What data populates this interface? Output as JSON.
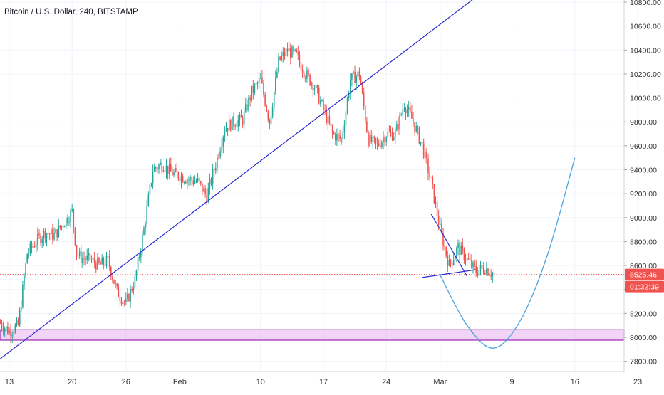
{
  "chart_data": {
    "type": "candlestick",
    "title": "Bitcoin / U.S. Dollar, 240, BITSTAMP",
    "colors": {
      "up": "#26a69a",
      "down": "#ef5350",
      "trendline": "#2a2ad4",
      "projection": "#4aa3e0",
      "support_fill": "#e9b7f2",
      "support_border": "#9c27b0",
      "price_line": "#ef5350",
      "grid": "#f0f3fa",
      "axis_text": "#333333"
    },
    "y_axis": {
      "min": 7700,
      "max": 10900,
      "ticks": [
        "7800.00",
        "8000.00",
        "8200.00",
        "8400.00",
        "8600.00",
        "8800.00",
        "9000.00",
        "9200.00",
        "9400.00",
        "9600.00",
        "9800.00",
        "10000.00",
        "10200.00",
        "10400.00",
        "10600.00",
        "10800.00"
      ]
    },
    "x_axis": {
      "start": "2020-01-12",
      "end": "2020-03-23",
      "ticks": [
        {
          "date": "2020-01-13",
          "label": "13"
        },
        {
          "date": "2020-01-20",
          "label": "20"
        },
        {
          "date": "2020-01-26",
          "label": "26"
        },
        {
          "date": "2020-02-01",
          "label": "Feb"
        },
        {
          "date": "2020-02-10",
          "label": "10"
        },
        {
          "date": "2020-02-17",
          "label": "17"
        },
        {
          "date": "2020-02-24",
          "label": "24"
        },
        {
          "date": "2020-03-01",
          "label": "Mar"
        },
        {
          "date": "2020-03-09",
          "label": "9"
        },
        {
          "date": "2020-03-16",
          "label": "16"
        },
        {
          "date": "2020-03-23",
          "label": "23"
        }
      ]
    },
    "price_path": [
      {
        "x": "2020-01-12",
        "y": 8120
      },
      {
        "x": "2020-01-13",
        "y": 8050
      },
      {
        "x": "2020-01-14",
        "y": 8100
      },
      {
        "x": "2020-01-15",
        "y": 8700
      },
      {
        "x": "2020-01-16",
        "y": 8800
      },
      {
        "x": "2020-01-17",
        "y": 8880
      },
      {
        "x": "2020-01-18",
        "y": 8850
      },
      {
        "x": "2020-01-19",
        "y": 8950
      },
      {
        "x": "2020-01-20",
        "y": 9050
      },
      {
        "x": "2020-01-20.5",
        "y": 8700
      },
      {
        "x": "2020-01-21",
        "y": 8660
      },
      {
        "x": "2020-01-22",
        "y": 8650
      },
      {
        "x": "2020-01-23",
        "y": 8600
      },
      {
        "x": "2020-01-24",
        "y": 8640
      },
      {
        "x": "2020-01-25",
        "y": 8380
      },
      {
        "x": "2020-01-26",
        "y": 8280
      },
      {
        "x": "2020-01-27",
        "y": 8480
      },
      {
        "x": "2020-01-28",
        "y": 8900
      },
      {
        "x": "2020-01-29",
        "y": 9400
      },
      {
        "x": "2020-01-30",
        "y": 9450
      },
      {
        "x": "2020-01-31",
        "y": 9380
      },
      {
        "x": "2020-02-01",
        "y": 9350
      },
      {
        "x": "2020-02-02",
        "y": 9320
      },
      {
        "x": "2020-02-03",
        "y": 9300
      },
      {
        "x": "2020-02-04",
        "y": 9180
      },
      {
        "x": "2020-02-05",
        "y": 9450
      },
      {
        "x": "2020-02-06",
        "y": 9750
      },
      {
        "x": "2020-02-07",
        "y": 9800
      },
      {
        "x": "2020-02-08",
        "y": 9820
      },
      {
        "x": "2020-02-09",
        "y": 10050
      },
      {
        "x": "2020-02-10",
        "y": 10150
      },
      {
        "x": "2020-02-11",
        "y": 9800
      },
      {
        "x": "2020-02-12",
        "y": 10300
      },
      {
        "x": "2020-02-13",
        "y": 10400
      },
      {
        "x": "2020-02-14",
        "y": 10350
      },
      {
        "x": "2020-02-15",
        "y": 10200
      },
      {
        "x": "2020-02-16",
        "y": 10100
      },
      {
        "x": "2020-02-17",
        "y": 9900
      },
      {
        "x": "2020-02-18",
        "y": 9700
      },
      {
        "x": "2020-02-19",
        "y": 9650
      },
      {
        "x": "2020-02-20",
        "y": 10150
      },
      {
        "x": "2020-02-21",
        "y": 10200
      },
      {
        "x": "2020-02-22",
        "y": 9650
      },
      {
        "x": "2020-02-23",
        "y": 9600
      },
      {
        "x": "2020-02-24",
        "y": 9700
      },
      {
        "x": "2020-02-25",
        "y": 9700
      },
      {
        "x": "2020-02-26",
        "y": 9950
      },
      {
        "x": "2020-02-27",
        "y": 9800
      },
      {
        "x": "2020-02-28",
        "y": 9600
      },
      {
        "x": "2020-02-29",
        "y": 9300
      },
      {
        "x": "2020-03-01",
        "y": 8900
      },
      {
        "x": "2020-03-02",
        "y": 8600
      },
      {
        "x": "2020-03-03",
        "y": 8750
      },
      {
        "x": "2020-03-04",
        "y": 8650
      },
      {
        "x": "2020-03-05",
        "y": 8550
      },
      {
        "x": "2020-03-06",
        "y": 8580
      },
      {
        "x": "2020-03-07",
        "y": 8525
      }
    ],
    "last_price": {
      "value": 8525.46,
      "label": "8525.46"
    },
    "countdown": {
      "label": "01:32:39"
    },
    "drawings": {
      "support_zone": {
        "from": 8000,
        "to": 8040
      },
      "rising_trendline": [
        {
          "x": "2020-01-09",
          "y": 7650
        },
        {
          "x": "2020-03-06",
          "y": 10900
        }
      ],
      "descending_line": [
        {
          "x": "2020-02-29",
          "y": 9030
        },
        {
          "x": "2020-03-04",
          "y": 8510
        }
      ],
      "flat_line": [
        {
          "x": "2020-02-28",
          "y": 8500
        },
        {
          "x": "2020-03-05",
          "y": 8565
        }
      ],
      "projection_curve": [
        {
          "x": "2020-03-01",
          "y": 8520
        },
        {
          "x": "2020-03-04",
          "y": 8100
        },
        {
          "x": "2020-03-07",
          "y": 7910
        },
        {
          "x": "2020-03-10",
          "y": 8150
        },
        {
          "x": "2020-03-13",
          "y": 8700
        },
        {
          "x": "2020-03-16",
          "y": 9500
        }
      ]
    }
  }
}
